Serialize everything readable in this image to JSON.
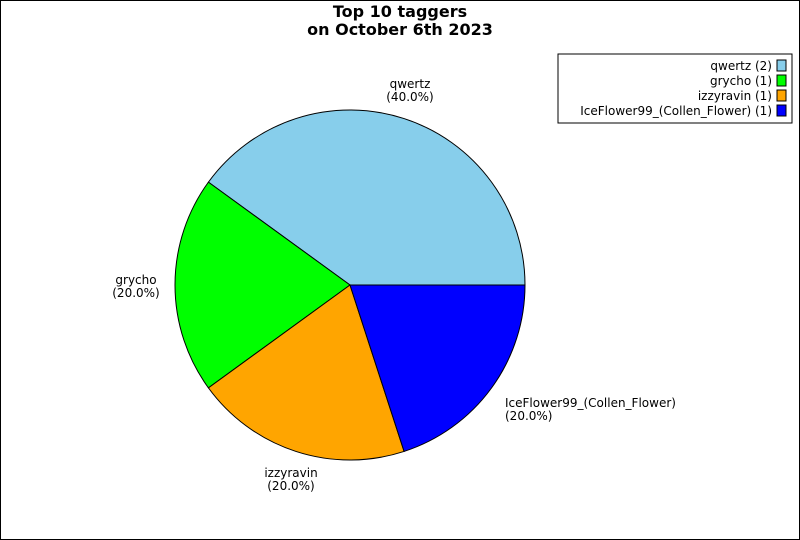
{
  "chart_data": {
    "type": "pie",
    "title": "Top 10 taggers",
    "subtitle": "on October 6th 2023",
    "legend_position": "top-right",
    "slices": [
      {
        "label": "qwertz",
        "value": 2,
        "percent_label": "(40.0%)",
        "legend_label": "qwertz (2)",
        "color": "#87ceeb"
      },
      {
        "label": "grycho",
        "value": 1,
        "percent_label": "(20.0%)",
        "legend_label": "grycho (1)",
        "color": "#00ff00"
      },
      {
        "label": "izzyravin",
        "value": 1,
        "percent_label": "(20.0%)",
        "legend_label": "izzyravin (1)",
        "color": "#ffa500"
      },
      {
        "label": "IceFlower99_(Collen_Flower)",
        "value": 1,
        "percent_label": "(20.0%)",
        "legend_label": "IceFlower99_(Collen_Flower) (1)",
        "color": "#0000ff"
      }
    ]
  }
}
